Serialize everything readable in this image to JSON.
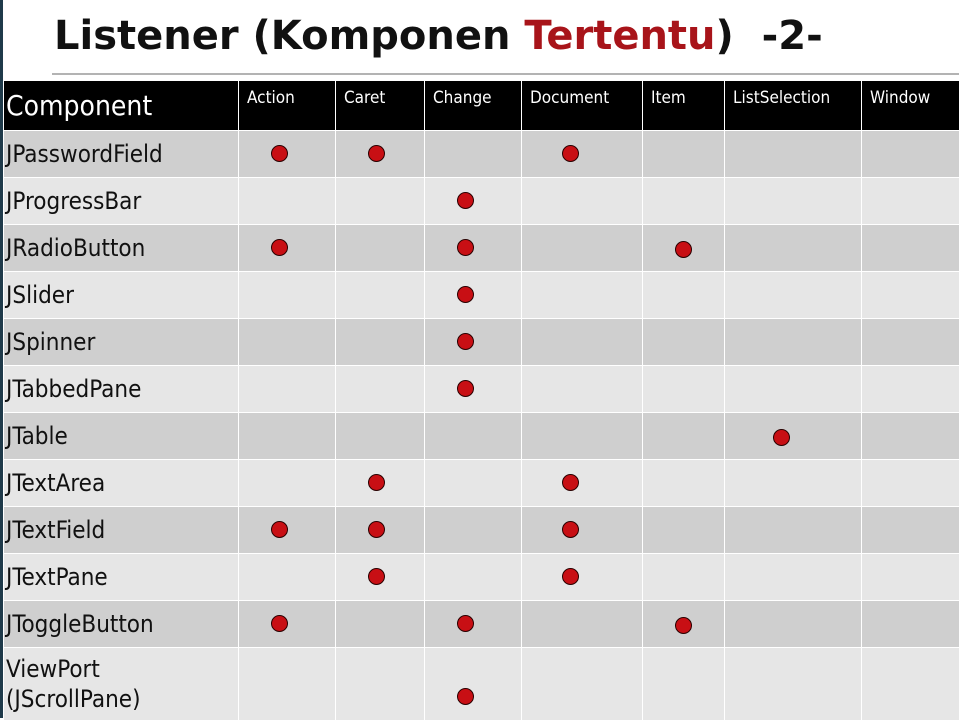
{
  "title": {
    "prefix": "Listener (Komponen ",
    "highlight": "Tertentu",
    "suffix": ")  -2-",
    "highlight_color": "#a8141a"
  },
  "table": {
    "headers": [
      "Component",
      "Action",
      "Caret",
      "Change",
      "Document",
      "Item",
      "ListSelection",
      "Window"
    ],
    "rows": [
      {
        "name": "JPasswordField",
        "listeners": [
          "Action",
          "Caret",
          "Document"
        ]
      },
      {
        "name": "JProgressBar",
        "listeners": [
          "Change"
        ]
      },
      {
        "name": "JRadioButton",
        "listeners": [
          "Action",
          "Change",
          "Item"
        ]
      },
      {
        "name": "JSlider",
        "listeners": [
          "Change"
        ]
      },
      {
        "name": "JSpinner",
        "listeners": [
          "Change"
        ]
      },
      {
        "name": "JTabbedPane",
        "listeners": [
          "Change"
        ]
      },
      {
        "name": "JTable",
        "listeners": [
          "ListSelection"
        ]
      },
      {
        "name": "JTextArea",
        "listeners": [
          "Caret",
          "Document"
        ]
      },
      {
        "name": "JTextField",
        "listeners": [
          "Action",
          "Caret",
          "Document"
        ]
      },
      {
        "name": "JTextPane",
        "listeners": [
          "Caret",
          "Document"
        ]
      },
      {
        "name": "JToggleButton",
        "listeners": [
          "Action",
          "Change",
          "Item"
        ]
      },
      {
        "name": "ViewPort\n(JScrollPane)",
        "listeners": [
          "Change"
        ]
      }
    ]
  },
  "colors": {
    "dot": "#c80f14",
    "header_bg": "#000000",
    "row_dark": "#cfcfcf",
    "row_light": "#e6e6e6"
  }
}
